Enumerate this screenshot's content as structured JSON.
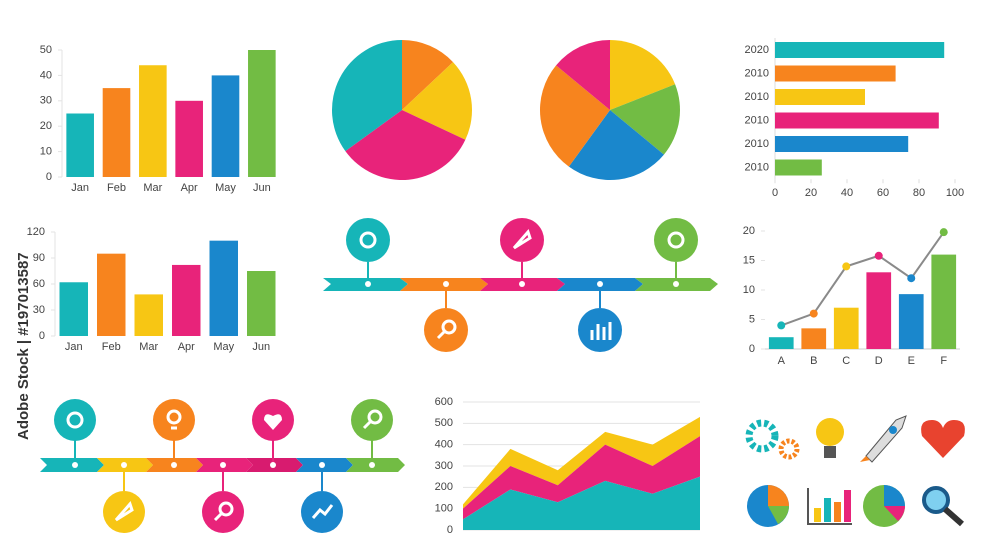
{
  "watermark": "Adobe Stock | #197013587",
  "chart_data": [
    {
      "type": "bar",
      "categories": [
        "Jan",
        "Feb",
        "Mar",
        "Apr",
        "May",
        "Jun"
      ],
      "values": [
        25,
        35,
        44,
        30,
        40,
        50
      ],
      "colors": [
        "#16b5b8",
        "#f7841e",
        "#f7c614",
        "#e8237a",
        "#1a87cc",
        "#72bc44"
      ],
      "ylim": [
        0,
        50
      ],
      "yticks": [
        0,
        10,
        20,
        30,
        40,
        50
      ]
    },
    {
      "type": "pie",
      "values": [
        13,
        19,
        33,
        35
      ],
      "colors": [
        "#f7841e",
        "#f7c614",
        "#e8237a",
        "#16b5b8"
      ]
    },
    {
      "type": "pie",
      "values": [
        19,
        17,
        24,
        26,
        14
      ],
      "colors": [
        "#f7c614",
        "#72bc44",
        "#1a87cc",
        "#f7841e",
        "#e8237a"
      ]
    },
    {
      "type": "hbar",
      "categories": [
        "2020",
        "2010",
        "2010",
        "2010",
        "2010",
        "2010"
      ],
      "values": [
        94,
        67,
        50,
        91,
        74,
        26
      ],
      "colors": [
        "#16b5b8",
        "#f7841e",
        "#f7c614",
        "#e8237a",
        "#1a87cc",
        "#72bc44"
      ],
      "xlim": [
        0,
        100
      ],
      "xticks": [
        0,
        20,
        40,
        60,
        80,
        100
      ]
    },
    {
      "type": "bar",
      "categories": [
        "Jan",
        "Feb",
        "Mar",
        "Apr",
        "May",
        "Jun"
      ],
      "values": [
        62,
        95,
        48,
        82,
        110,
        75
      ],
      "colors": [
        "#16b5b8",
        "#f7841e",
        "#f7c614",
        "#e8237a",
        "#1a87cc",
        "#72bc44"
      ],
      "ylim": [
        0,
        120
      ],
      "yticks": [
        0,
        30,
        60,
        90,
        120
      ]
    },
    {
      "type": "bar_line",
      "categories": [
        "A",
        "B",
        "C",
        "D",
        "E",
        "F"
      ],
      "ylim": [
        0,
        20
      ],
      "yticks": [
        0,
        5,
        10,
        15,
        20
      ],
      "series": [
        {
          "type": "bar",
          "colors": [
            "#16b5b8",
            "#f7841e",
            "#f7c614",
            "#e8237a",
            "#1a87cc",
            "#72bc44"
          ],
          "values": [
            2,
            3.5,
            7,
            13,
            9.3,
            16
          ]
        },
        {
          "type": "line",
          "color": "#8a8a8a",
          "marker_colors": [
            "#16b5b8",
            "#f7841e",
            "#f7c614",
            "#e8237a",
            "#1a87cc",
            "#72bc44"
          ],
          "values": [
            4,
            6,
            14,
            15.8,
            12,
            19.8
          ]
        }
      ]
    },
    {
      "type": "area",
      "stacked": true,
      "categories": [
        null,
        null,
        null,
        null,
        null,
        null
      ],
      "ylim": [
        0,
        600
      ],
      "yticks": [
        0,
        100,
        200,
        300,
        400,
        500,
        600
      ],
      "grid": true,
      "series": [
        {
          "color": "#16b5b8",
          "values": [
            50,
            190,
            130,
            230,
            170,
            250
          ]
        },
        {
          "color": "#e8237a",
          "values": [
            50,
            110,
            80,
            170,
            130,
            190
          ]
        },
        {
          "color": "#f7c614",
          "values": [
            20,
            80,
            70,
            60,
            100,
            90
          ]
        }
      ]
    }
  ]
}
